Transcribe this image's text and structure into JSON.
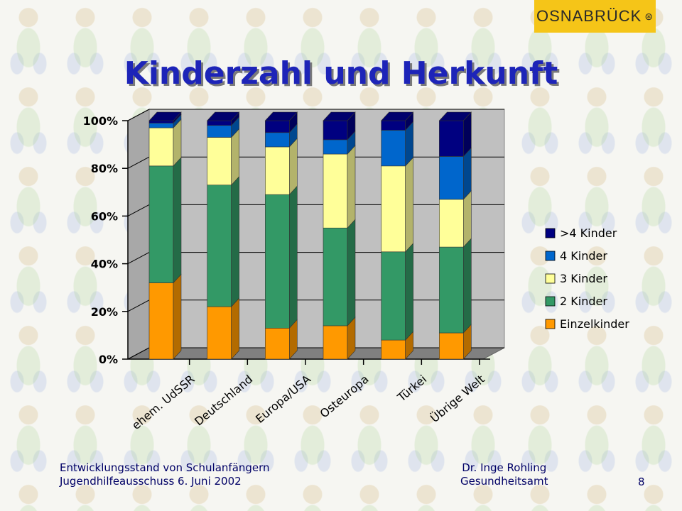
{
  "logo_text": "OSNABRÜCK",
  "title": "Kinderzahl und Herkunft",
  "footer": {
    "left_line1": "Entwicklungsstand von Schulanfängern",
    "left_line2": "Jugendhilfeausschuss 6. Juni 2002",
    "right_line1": "Dr. Inge Rohling",
    "right_line2": "Gesundheitsamt",
    "page": "8"
  },
  "chart_data": {
    "type": "bar",
    "stacked": true,
    "percent": true,
    "categories": [
      "ehem. UdSSR",
      "Deutschland",
      "Europa/USA",
      "Osteuropa",
      "Türkei",
      "Übrige Welt"
    ],
    "y_ticks": [
      "0%",
      "20%",
      "40%",
      "60%",
      "80%",
      "100%"
    ],
    "ylim": [
      0,
      100
    ],
    "legend_position": "right",
    "series": [
      {
        "name": "Einzelkinder",
        "color": "#ff9900",
        "values": [
          32,
          22,
          13,
          14,
          8,
          11
        ]
      },
      {
        "name": "2 Kinder",
        "color": "#339966",
        "values": [
          49,
          51,
          56,
          41,
          37,
          36
        ]
      },
      {
        "name": "3 Kinder",
        "color": "#ffff99",
        "values": [
          16,
          20,
          20,
          31,
          36,
          20
        ]
      },
      {
        "name": "4 Kinder",
        "color": "#0066cc",
        "values": [
          2,
          5,
          6,
          6,
          15,
          18
        ]
      },
      {
        "name": ">4 Kinder",
        "color": "#000080",
        "values": [
          1,
          2,
          5,
          8,
          4,
          15
        ]
      }
    ]
  }
}
